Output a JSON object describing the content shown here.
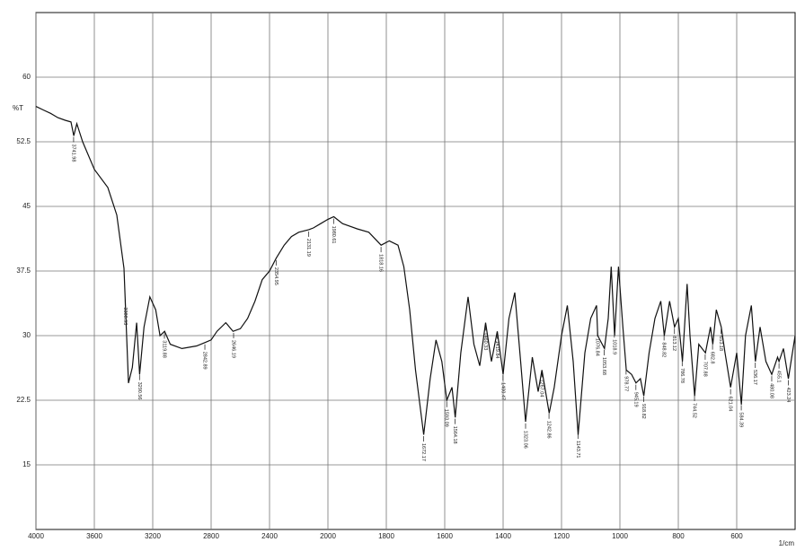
{
  "chart_data": {
    "type": "line",
    "y_label": "%T",
    "x_unit": "1/cm",
    "xlim": [
      4000,
      400
    ],
    "xticks": [
      4000,
      3600,
      3200,
      2800,
      2400,
      2000,
      1800,
      1600,
      1400,
      1200,
      1000,
      800,
      600
    ],
    "ylim": [
      7.5,
      67.5
    ],
    "yticks": [
      60,
      52.5,
      45,
      37.5,
      30,
      22.5,
      15
    ],
    "grid": true,
    "color": "#111111",
    "x": [
      4000,
      3950,
      3900,
      3850,
      3800,
      3760,
      3741,
      3720,
      3680,
      3600,
      3508,
      3446,
      3397,
      3366,
      3340,
      3310,
      3290,
      3260,
      3220,
      3180,
      3150,
      3119,
      3080,
      3000,
      2900,
      2842,
      2800,
      2760,
      2700,
      2650,
      2600,
      2550,
      2500,
      2450,
      2400,
      2354,
      2300,
      2250,
      2200,
      2131,
      2100,
      2050,
      2000,
      1980,
      1950,
      1900,
      1860,
      1818,
      1790,
      1760,
      1740,
      1720,
      1700,
      1672,
      1650,
      1630,
      1610,
      1593,
      1575,
      1564,
      1545,
      1520,
      1500,
      1480,
      1460,
      1440,
      1420,
      1400,
      1380,
      1360,
      1340,
      1323,
      1300,
      1280,
      1267,
      1242,
      1225,
      1200,
      1180,
      1160,
      1143,
      1120,
      1100,
      1080,
      1076,
      1053,
      1040,
      1030,
      1018,
      1005,
      990,
      978,
      960,
      945,
      930,
      918,
      900,
      880,
      860,
      848,
      830,
      813,
      800,
      786,
      770,
      760,
      744,
      730,
      707,
      690,
      682,
      670,
      653,
      640,
      621,
      600,
      584,
      570,
      550,
      536,
      520,
      500,
      480,
      460,
      455,
      440,
      423,
      400
    ],
    "values": [
      56.6,
      56.2,
      55.8,
      55.3,
      55.0,
      54.8,
      53.2,
      54.6,
      52.5,
      49.3,
      47.2,
      44,
      37.8,
      24.5,
      26.3,
      31.5,
      25.5,
      31,
      34.5,
      33,
      30,
      30.5,
      29,
      28.5,
      28.8,
      29.2,
      29.5,
      30.5,
      31.5,
      30.5,
      30.8,
      32,
      34,
      36.5,
      37.5,
      39,
      40.5,
      41.5,
      42,
      42.3,
      42.5,
      43,
      43.5,
      43.8,
      43,
      42.4,
      42,
      40.5,
      41,
      40.5,
      38,
      33,
      26,
      18.5,
      25,
      29.5,
      27,
      22.5,
      24,
      20.5,
      28,
      34.5,
      29,
      26.5,
      31.5,
      27,
      30.5,
      25.5,
      32,
      35,
      27,
      20,
      27.5,
      23.5,
      26,
      21,
      24,
      30,
      33.5,
      27,
      18.5,
      28,
      32,
      33.5,
      30,
      28.5,
      32,
      38,
      30,
      38,
      31,
      26,
      25.5,
      24.5,
      25,
      23,
      28,
      32,
      34,
      30,
      34,
      31,
      32,
      27,
      36,
      30,
      23,
      29,
      28,
      31,
      29,
      33,
      31,
      28,
      24,
      28,
      22,
      30,
      33.5,
      27,
      31,
      27,
      25.5,
      27.5,
      27,
      28.5,
      25,
      30
    ],
    "annotations": [
      {
        "x": 3741.98,
        "label": "3741.98"
      },
      {
        "x": 3388.93,
        "label": "3388.93"
      },
      {
        "x": 3290.56,
        "label": "3290.56"
      },
      {
        "x": 3119.88,
        "label": "3119.88"
      },
      {
        "x": 2842.89,
        "label": "2842.89"
      },
      {
        "x": 2646.19,
        "label": "2646.19"
      },
      {
        "x": 2354.95,
        "label": "2354.95"
      },
      {
        "x": 2131.19,
        "label": "2131.19"
      },
      {
        "x": 1980.61,
        "label": "1980.61"
      },
      {
        "x": 1818.16,
        "label": "1818.16"
      },
      {
        "x": 1672.17,
        "label": "1672.17"
      },
      {
        "x": 1593.09,
        "label": "1593.09"
      },
      {
        "x": 1564.18,
        "label": "1564.18"
      },
      {
        "x": 1460.33,
        "label": "1460.33"
      },
      {
        "x": 1419.84,
        "label": "1419.84"
      },
      {
        "x": 1400.47,
        "label": "1400.47"
      },
      {
        "x": 1323.06,
        "label": "1323.06"
      },
      {
        "x": 1267.04,
        "label": "1267.04"
      },
      {
        "x": 1242.86,
        "label": "1242.86"
      },
      {
        "x": 1143.71,
        "label": "1143.71"
      },
      {
        "x": 1076.84,
        "label": "1076.84"
      },
      {
        "x": 1053.68,
        "label": "1053.68"
      },
      {
        "x": 1018.9,
        "label": "1018.9"
      },
      {
        "x": 978.77,
        "label": "978.77"
      },
      {
        "x": 945.19,
        "label": "945.19"
      },
      {
        "x": 918.82,
        "label": "918.82"
      },
      {
        "x": 848.82,
        "label": "848.82"
      },
      {
        "x": 813.12,
        "label": "813.12"
      },
      {
        "x": 786.78,
        "label": "786.78"
      },
      {
        "x": 744.52,
        "label": "744.52"
      },
      {
        "x": 707.88,
        "label": "707.88"
      },
      {
        "x": 682.8,
        "label": "682.8"
      },
      {
        "x": 653.18,
        "label": "653.18"
      },
      {
        "x": 621.04,
        "label": "621.04"
      },
      {
        "x": 584.39,
        "label": "584.39"
      },
      {
        "x": 536.17,
        "label": "536.17"
      },
      {
        "x": 480.08,
        "label": "480.08"
      },
      {
        "x": 455.1,
        "label": "455.1"
      },
      {
        "x": 423.24,
        "label": "423.24"
      }
    ]
  }
}
